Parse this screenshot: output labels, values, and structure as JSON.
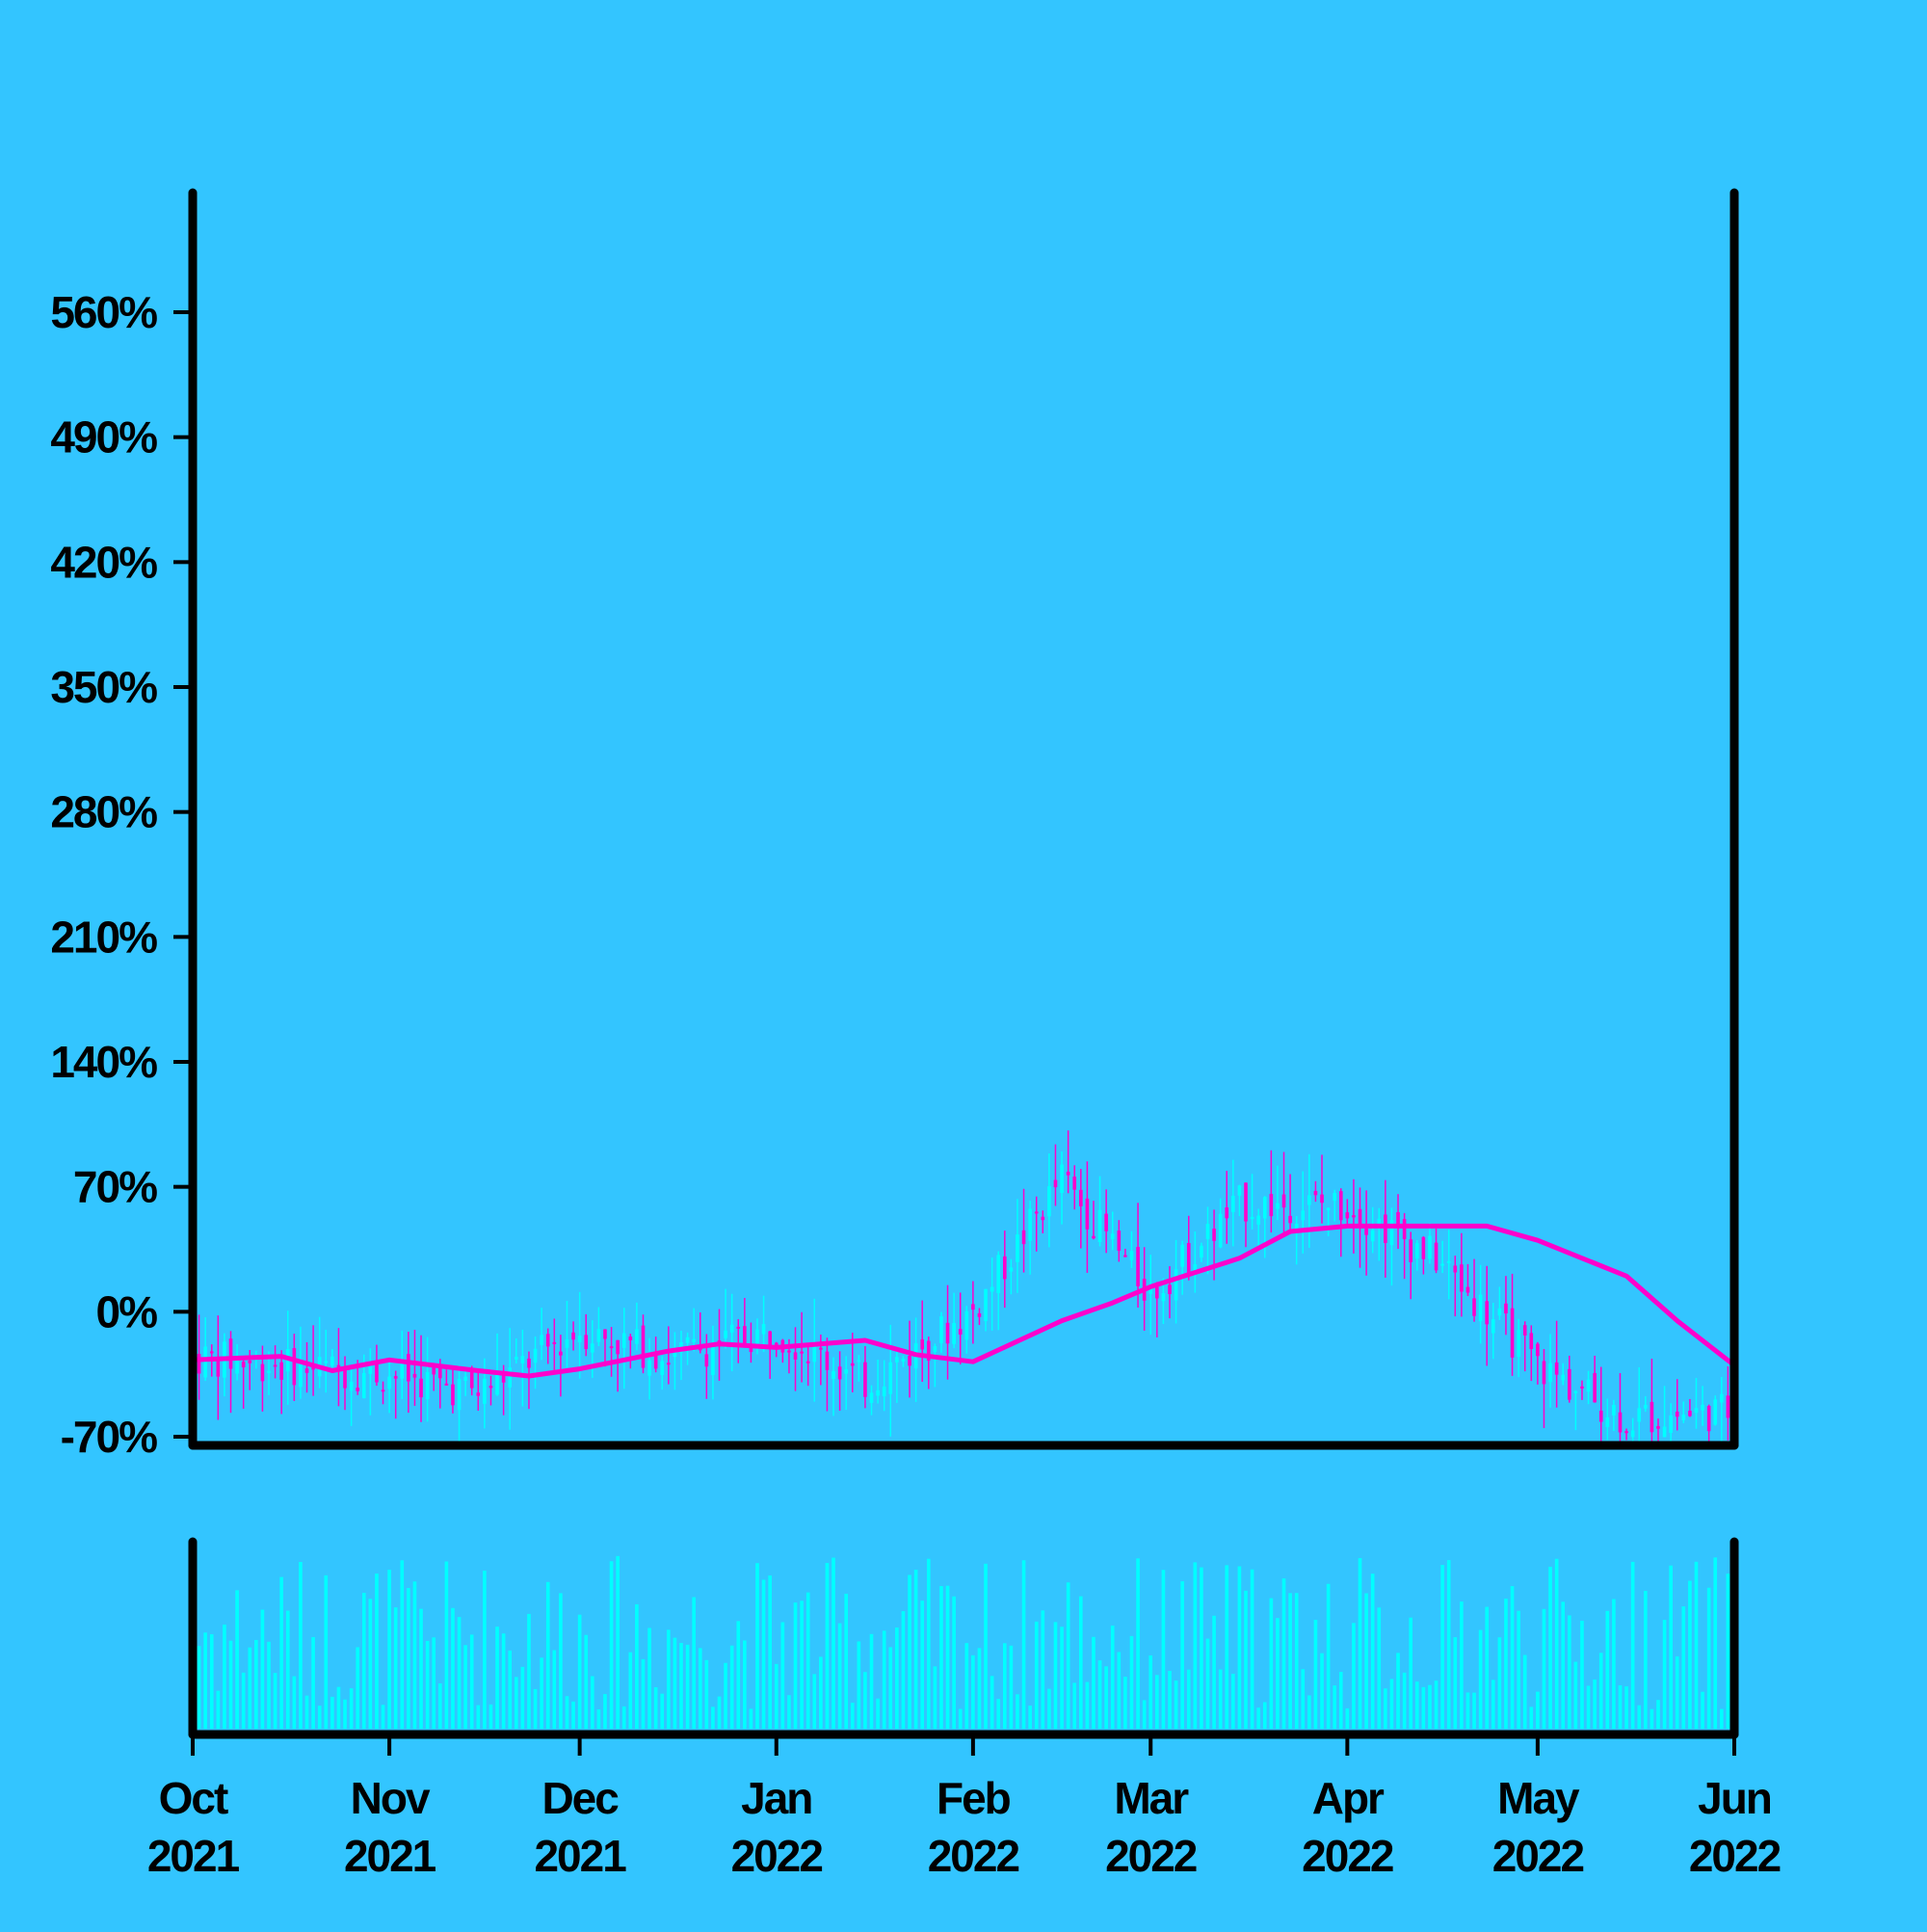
{
  "colors": {
    "background": "#33c5ff",
    "axis": "#000000",
    "candle_up": "#00ffff",
    "candle_down": "#ff00cc",
    "moving_average": "#ff00cc",
    "volume": "#00ffff"
  },
  "chart_data": {
    "type": "candlestick",
    "title": "",
    "xlabel": "",
    "ylabel": "",
    "price_axis": {
      "unit": "%",
      "ylim": [
        -70,
        610
      ],
      "ticks": [
        -70,
        0,
        70,
        140,
        210,
        280,
        350,
        420,
        490,
        560
      ],
      "tick_labels": [
        "-70%",
        "0%",
        "70%",
        "140%",
        "210%",
        "280%",
        "350%",
        "420%",
        "490%",
        "560%"
      ]
    },
    "x_axis": {
      "range": [
        "2021-10-01",
        "2022-06-01"
      ],
      "ticks": [
        "2021-10-01",
        "2021-11-01",
        "2021-12-01",
        "2022-01-01",
        "2022-02-01",
        "2022-03-01",
        "2022-04-01",
        "2022-05-01",
        "2022-06-01"
      ],
      "tick_months": [
        "Oct",
        "Nov",
        "Dec",
        "Jan",
        "Feb",
        "Mar",
        "Apr",
        "May",
        "Jun"
      ],
      "tick_years": [
        "2021",
        "2021",
        "2021",
        "2022",
        "2022",
        "2022",
        "2022",
        "2022",
        "2022"
      ]
    },
    "series": [
      {
        "kind": "ohlc",
        "color_up": "#00ffff",
        "color_down": "#ff00cc",
        "frequency": "daily",
        "trend_anchors": [
          [
            "2021-10-01",
            -25
          ],
          [
            "2021-10-15",
            -30
          ],
          [
            "2021-11-01",
            -35
          ],
          [
            "2021-11-15",
            -45
          ],
          [
            "2021-12-01",
            -10
          ],
          [
            "2021-12-15",
            -25
          ],
          [
            "2022-01-01",
            -10
          ],
          [
            "2022-01-15",
            -40
          ],
          [
            "2022-02-01",
            0
          ],
          [
            "2022-02-15",
            75
          ],
          [
            "2022-03-01",
            10
          ],
          [
            "2022-03-15",
            60
          ],
          [
            "2022-04-01",
            60
          ],
          [
            "2022-04-15",
            30
          ],
          [
            "2022-05-01",
            -30
          ],
          [
            "2022-05-15",
            -60
          ],
          [
            "2022-06-01",
            -55
          ]
        ]
      },
      {
        "kind": "moving_average",
        "color": "#ff00cc",
        "points": [
          [
            "2021-10-01",
            -27
          ],
          [
            "2021-10-15",
            -25
          ],
          [
            "2021-10-23",
            -33
          ],
          [
            "2021-11-01",
            -27
          ],
          [
            "2021-11-15",
            -33
          ],
          [
            "2021-11-23",
            -36
          ],
          [
            "2021-12-01",
            -32
          ],
          [
            "2021-12-15",
            -22
          ],
          [
            "2021-12-23",
            -18
          ],
          [
            "2022-01-01",
            -20
          ],
          [
            "2022-01-15",
            -16
          ],
          [
            "2022-01-23",
            -24
          ],
          [
            "2022-02-01",
            -28
          ],
          [
            "2022-02-15",
            -5
          ],
          [
            "2022-02-23",
            5
          ],
          [
            "2022-03-01",
            14
          ],
          [
            "2022-03-15",
            30
          ],
          [
            "2022-03-23",
            45
          ],
          [
            "2022-04-01",
            48
          ],
          [
            "2022-04-15",
            48
          ],
          [
            "2022-04-23",
            48
          ],
          [
            "2022-05-01",
            40
          ],
          [
            "2022-05-15",
            20
          ],
          [
            "2022-05-23",
            -5
          ],
          [
            "2022-06-01",
            -30
          ]
        ]
      },
      {
        "kind": "volume",
        "color": "#00ffff",
        "relative_scale": true
      }
    ],
    "grid": false,
    "legend": "none"
  }
}
